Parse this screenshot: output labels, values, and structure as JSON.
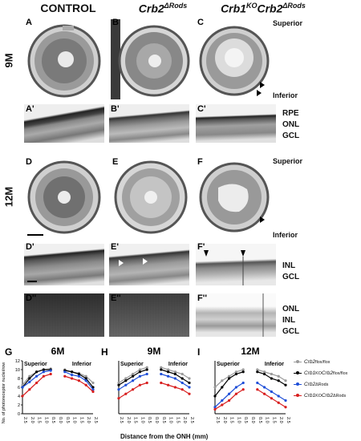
{
  "columns": {
    "control": "CONTROL",
    "crb2": "Crb2",
    "crb2_sup": "ΔRods",
    "crb1": "Crb1",
    "crb1_sup": "KO",
    "crb1_crb2": "Crb2",
    "crb1_crb2_sup": "ΔRods"
  },
  "rows": {
    "r9m": "9M",
    "r12m": "12M"
  },
  "panels": {
    "A": "A",
    "B": "B",
    "C": "C",
    "A1": "A'",
    "B1": "B'",
    "C1": "C'",
    "D": "D",
    "E": "E",
    "F": "F",
    "D1": "D'",
    "E1": "E'",
    "F1": "F'",
    "D2": "D''",
    "E2": "E''",
    "F2": "F''",
    "G": "G",
    "H": "H",
    "I": "I"
  },
  "orientation": {
    "superior": "Superior",
    "inferior": "Inferior"
  },
  "layers": {
    "rpe": "RPE",
    "onl": "ONL",
    "gcl": "GCL",
    "inl": "INL"
  },
  "chart_data": [
    {
      "type": "line",
      "title": "6M",
      "x": [
        "2.5",
        "2.0",
        "1.5",
        "1.0",
        "0.5",
        "0.0",
        "0.5",
        "1.0",
        "1.5",
        "2.0",
        "2.5"
      ],
      "xlabel": "",
      "ylabel": "No. of photoreceptor nuclei/row",
      "ylim": [
        0,
        12
      ],
      "yticks": [
        0,
        2,
        4,
        6,
        8,
        10,
        12
      ],
      "series": [
        {
          "color": "#9a9a9a",
          "values": [
            6.5,
            8.5,
            9.5,
            10,
            10.2,
            null,
            10,
            9.5,
            9.2,
            8.5,
            7
          ]
        },
        {
          "color": "#000000",
          "values": [
            6,
            8,
            9.5,
            10,
            10,
            null,
            9.8,
            9.5,
            9,
            8,
            6
          ]
        },
        {
          "color": "#1f4fd8",
          "values": [
            6,
            7.2,
            8.5,
            9.5,
            9.8,
            null,
            9.5,
            8.8,
            8.5,
            7.5,
            5.5
          ]
        },
        {
          "color": "#d81f1f",
          "values": [
            4,
            5.5,
            7,
            8.5,
            9,
            null,
            8.5,
            8,
            7.5,
            6.5,
            5
          ]
        }
      ]
    },
    {
      "type": "line",
      "title": "9M",
      "x": [
        "2.5",
        "2.0",
        "1.5",
        "1.0",
        "0.5",
        "0.0",
        "0.5",
        "1.0",
        "1.5",
        "2.0",
        "2.5"
      ],
      "xlabel": "Distance from the ONH (mm)",
      "ylim": [
        0,
        12
      ],
      "series": [
        {
          "color": "#9a9a9a",
          "values": [
            7,
            8,
            9,
            10,
            10.5,
            null,
            10.5,
            10,
            9.5,
            9,
            8
          ]
        },
        {
          "color": "#000000",
          "values": [
            6.5,
            7.5,
            8.5,
            9.5,
            10,
            null,
            10,
            9.5,
            9,
            8,
            7
          ]
        },
        {
          "color": "#1f4fd8",
          "values": [
            5.5,
            6.5,
            7.5,
            8.5,
            9,
            null,
            9,
            8.5,
            8,
            7,
            6
          ]
        },
        {
          "color": "#d81f1f",
          "values": [
            3.5,
            4.5,
            5.5,
            6.5,
            7,
            null,
            7,
            6.5,
            6,
            5.5,
            4.5
          ]
        }
      ]
    },
    {
      "type": "line",
      "title": "12M",
      "x": [
        "2.5",
        "2.0",
        "1.5",
        "1.0",
        "0.5",
        "0.0",
        "0.5",
        "1.0",
        "1.5",
        "2.0",
        "2.5"
      ],
      "xlabel": "",
      "ylim": [
        0,
        12
      ],
      "series": [
        {
          "color": "#9a9a9a",
          "values": [
            6,
            7.5,
            8.5,
            9.5,
            10,
            null,
            10,
            9.5,
            9,
            8.5,
            7.5
          ]
        },
        {
          "color": "#000000",
          "values": [
            4,
            6,
            8,
            9,
            9.5,
            null,
            9.5,
            9,
            8,
            7.5,
            6.5
          ]
        },
        {
          "color": "#1f4fd8",
          "values": [
            1.5,
            3,
            4.5,
            6,
            7,
            null,
            7,
            6,
            5,
            4,
            3
          ]
        },
        {
          "color": "#d81f1f",
          "values": [
            1,
            2,
            3,
            4.5,
            5.5,
            null,
            5.5,
            4.5,
            3.5,
            2.5,
            1.5
          ]
        }
      ]
    }
  ],
  "graph_labels": {
    "superior": "Superior",
    "inferior": "Inferior"
  },
  "legend": [
    {
      "base": "Crb2",
      "sup": "flox/flox",
      "color": "#9a9a9a"
    },
    {
      "base": "Crb1",
      "sup": "KO",
      "base2": "Crb2",
      "sup2": "flox/flox",
      "color": "#000000"
    },
    {
      "base": "Crb2",
      "sup": "ΔRods",
      "color": "#1f4fd8"
    },
    {
      "base": "Crb1",
      "sup": "KO",
      "base2": "Crb2",
      "sup2": "ΔRods",
      "color": "#d81f1f"
    }
  ]
}
